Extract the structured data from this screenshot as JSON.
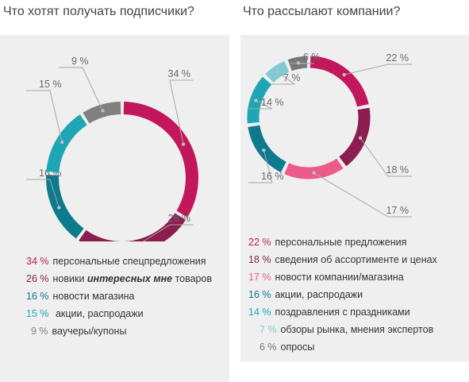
{
  "chart_data": [
    {
      "type": "pie",
      "title": "Что хотят получать подписчики?",
      "slices": [
        {
          "label": "34 %",
          "value": 34,
          "color": "#c2185b",
          "legend_value": "34 %",
          "legend_text": "персональные спецпредложения",
          "value_color": "#c2185b"
        },
        {
          "label": "26 %",
          "value": 26,
          "color": "#8b1e4f",
          "legend_value": "26 %",
          "legend_text": "новики",
          "legend_emph": "интересных мне",
          "legend_text2": "товаров",
          "value_color": "#8b1e4f"
        },
        {
          "label": "16 %",
          "value": 16,
          "color": "#0e7a8e",
          "legend_value": "16 %",
          "legend_text": "новости магазина",
          "value_color": "#0e7a8e"
        },
        {
          "label": "15 %",
          "value": 15,
          "color": "#1fa6b6",
          "legend_value": "15 %",
          "legend_text": " акции, распродажи",
          "value_color": "#1fa6b6"
        },
        {
          "label": "9 %",
          "value": 9,
          "color": "#808080",
          "legend_value": "9 %",
          "legend_text": "ваучеры/купоны",
          "value_color": "#808080"
        }
      ]
    },
    {
      "type": "pie",
      "title": "Что рассылают компании?",
      "slices": [
        {
          "label": "22 %",
          "value": 22,
          "color": "#c2185b",
          "legend_value": "22 %",
          "legend_text": "персональные предложения",
          "value_color": "#c2185b"
        },
        {
          "label": "18 %",
          "value": 18,
          "color": "#8b1e4f",
          "legend_value": "18 %",
          "legend_text": "сведения об ассортименте и ценах",
          "value_color": "#8b1e4f"
        },
        {
          "label": "17 %",
          "value": 17,
          "color": "#ee5a8a",
          "legend_value": "17 %",
          "legend_text": "новости компании/магазина",
          "value_color": "#ee5a8a"
        },
        {
          "label": "16 %",
          "value": 16,
          "color": "#0e7a8e",
          "legend_value": "16 %",
          "legend_text": "акции, распродажи",
          "value_color": "#0e7a8e"
        },
        {
          "label": "14 %",
          "value": 14,
          "color": "#1fa6b6",
          "legend_value": "14 %",
          "legend_text": "поздравления с праздниками",
          "value_color": "#1fa6b6"
        },
        {
          "label": "7 %",
          "value": 7,
          "color": "#7fcad6",
          "legend_value": "7 %",
          "legend_text": "обзоры рынка, мнения экспертов",
          "value_color": "#7fcad6"
        },
        {
          "label": "6 %",
          "value": 6,
          "color": "#777777",
          "legend_value": "6 %",
          "legend_text": "опросы",
          "value_color": "#777777"
        }
      ]
    }
  ]
}
